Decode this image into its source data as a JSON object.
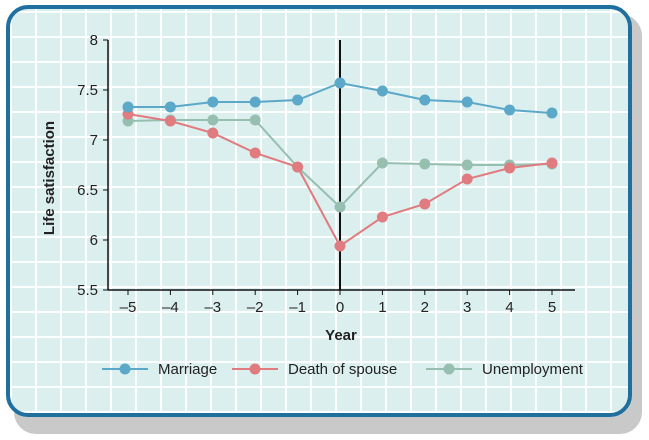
{
  "chart_data": {
    "type": "line",
    "title": "",
    "xlabel": "Year",
    "ylabel": "Life satisfaction",
    "x": [
      -5,
      -4,
      -3,
      -2,
      -1,
      0,
      1,
      2,
      3,
      4,
      5
    ],
    "x_tick_labels": [
      "–5",
      "–4",
      "–3",
      "–2",
      "–1",
      "0",
      "1",
      "2",
      "3",
      "4",
      "5"
    ],
    "ylim": [
      5.5,
      8
    ],
    "y_ticks": [
      5.5,
      6,
      6.5,
      7,
      7.5,
      8
    ],
    "y_tick_labels": [
      "5.5",
      "6",
      "6.5",
      "7",
      "7.5",
      "8"
    ],
    "grid": true,
    "legend_position": "bottom",
    "series": [
      {
        "name": "Marriage",
        "color": "#5ba8c8",
        "values": [
          7.33,
          7.33,
          7.38,
          7.38,
          7.4,
          7.57,
          7.49,
          7.4,
          7.38,
          7.3,
          7.27
        ]
      },
      {
        "name": "Death of spouse",
        "color": "#e07b7f",
        "values": [
          7.26,
          7.19,
          7.07,
          6.87,
          6.73,
          5.94,
          6.23,
          6.36,
          6.61,
          6.72,
          6.77
        ]
      },
      {
        "name": "Unemployment",
        "color": "#96bfb0",
        "values": [
          7.19,
          7.2,
          7.2,
          7.2,
          6.73,
          6.33,
          6.77,
          6.76,
          6.75,
          6.75,
          6.76
        ]
      }
    ]
  }
}
